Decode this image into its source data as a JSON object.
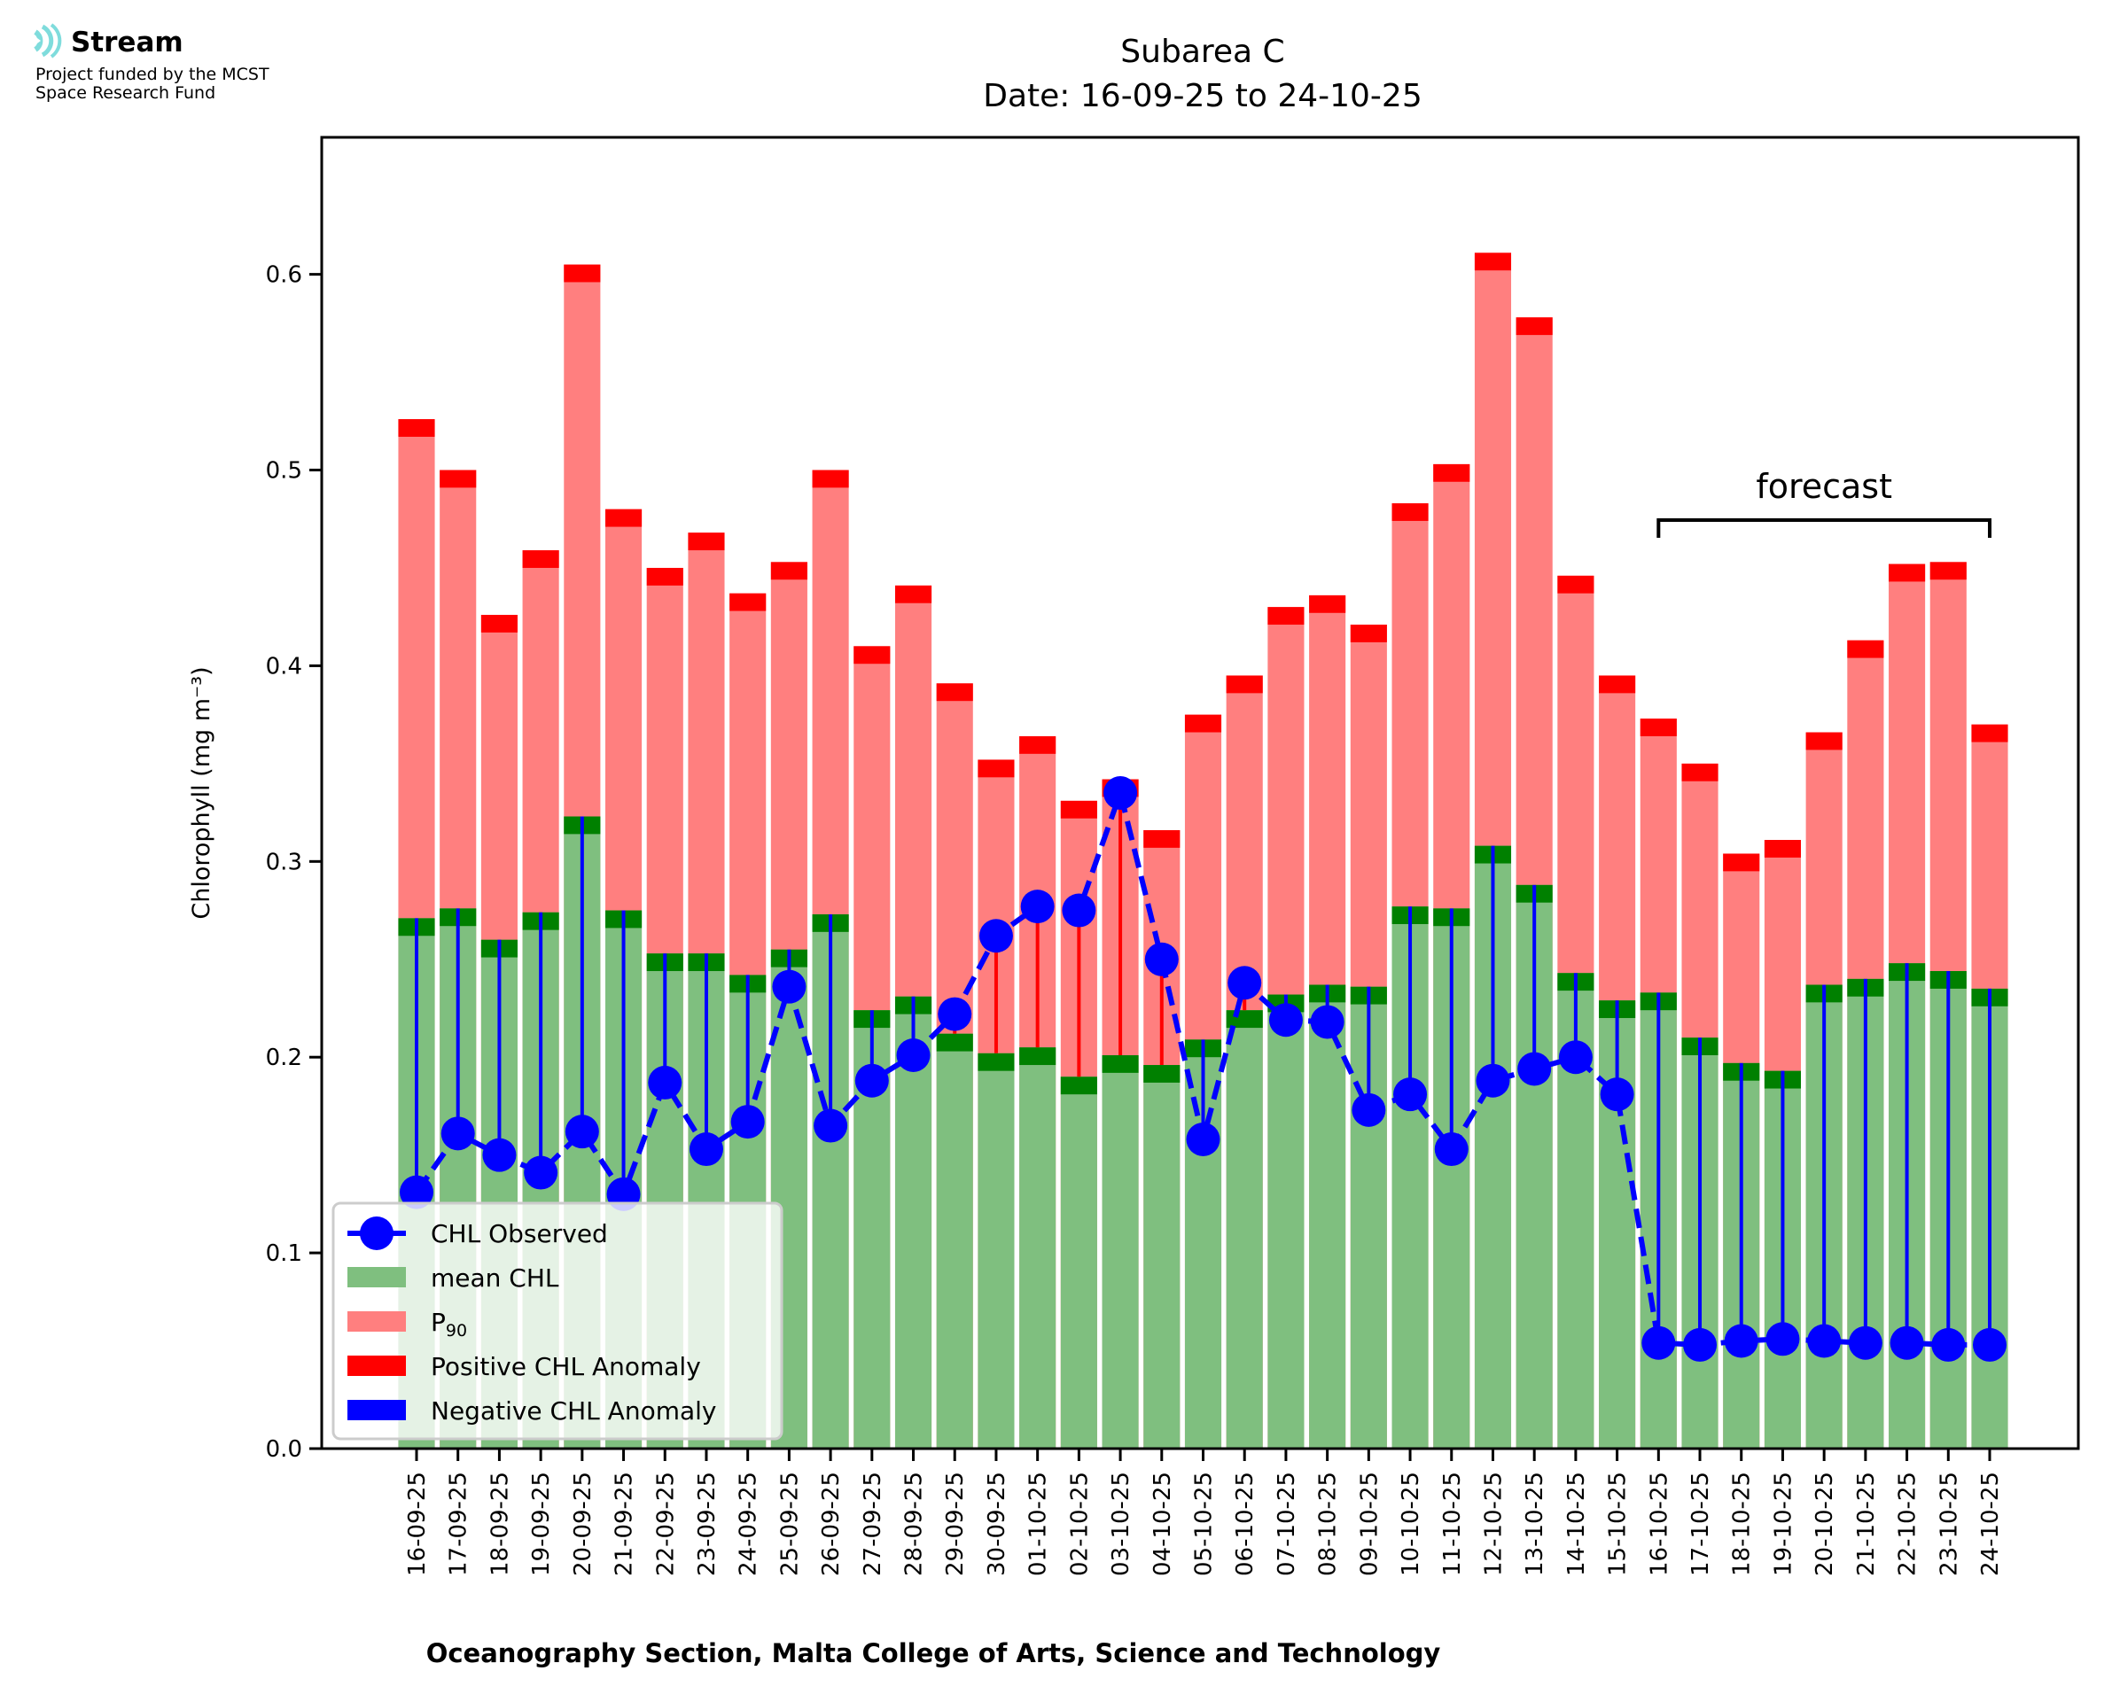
{
  "logo": {
    "brand": "Stream",
    "line1": "Project funded by the MCST",
    "line2": "Space Research Fund",
    "icon": "stream-waves-icon",
    "icon_color": "#7fdcdc"
  },
  "chart_data": {
    "type": "bar",
    "title": "Subarea C",
    "subtitle": "Date: 16-09-25 to 24-10-25",
    "xlabel": "Oceanography Section, Malta College of Arts, Science and Technology",
    "ylabel": "Chlorophyll (mg m⁻³)",
    "ylim": [
      0,
      0.67
    ],
    "yticks": [
      0.0,
      0.1,
      0.2,
      0.3,
      0.4,
      0.5,
      0.6
    ],
    "ytick_labels": [
      "0.0",
      "0.1",
      "0.2",
      "0.3",
      "0.4",
      "0.5",
      "0.6"
    ],
    "grid": false,
    "legend_position": "lower-left",
    "categories": [
      "16-09-25",
      "17-09-25",
      "18-09-25",
      "19-09-25",
      "20-09-25",
      "21-09-25",
      "22-09-25",
      "23-09-25",
      "24-09-25",
      "25-09-25",
      "26-09-25",
      "27-09-25",
      "28-09-25",
      "29-09-25",
      "30-09-25",
      "01-10-25",
      "02-10-25",
      "03-10-25",
      "04-10-25",
      "05-10-25",
      "06-10-25",
      "07-10-25",
      "08-10-25",
      "09-10-25",
      "10-10-25",
      "11-10-25",
      "12-10-25",
      "13-10-25",
      "14-10-25",
      "15-10-25",
      "16-10-25",
      "17-10-25",
      "18-10-25",
      "19-10-25",
      "20-10-25",
      "21-10-25",
      "22-10-25",
      "23-10-25",
      "24-10-25"
    ],
    "series": [
      {
        "name": "P₉₀",
        "key": "p90",
        "color": "#ff7f7f",
        "cap_color": "#ff0000",
        "values": [
          0.526,
          0.5,
          0.426,
          0.459,
          0.605,
          0.48,
          0.45,
          0.468,
          0.437,
          0.453,
          0.5,
          0.41,
          0.441,
          0.391,
          0.352,
          0.364,
          0.331,
          0.342,
          0.316,
          0.375,
          0.395,
          0.43,
          0.436,
          0.421,
          0.483,
          0.503,
          0.611,
          0.578,
          0.446,
          0.395,
          0.373,
          0.35,
          0.304,
          0.311,
          0.366,
          0.413,
          0.452,
          0.453,
          0.37
        ]
      },
      {
        "name": "mean CHL",
        "key": "mean",
        "color": "#7fbf7f",
        "cap_color": "#008000",
        "values": [
          0.271,
          0.276,
          0.26,
          0.274,
          0.323,
          0.275,
          0.253,
          0.253,
          0.242,
          0.255,
          0.273,
          0.224,
          0.231,
          0.212,
          0.202,
          0.205,
          0.19,
          0.201,
          0.196,
          0.209,
          0.224,
          0.232,
          0.237,
          0.236,
          0.277,
          0.276,
          0.308,
          0.288,
          0.243,
          0.229,
          0.233,
          0.21,
          0.197,
          0.193,
          0.237,
          0.24,
          0.248,
          0.244,
          0.235
        ]
      },
      {
        "name": "CHL Observed",
        "key": "observed",
        "color": "#0000ff",
        "type": "line",
        "values": [
          0.131,
          0.161,
          0.15,
          0.141,
          0.162,
          0.13,
          0.187,
          0.153,
          0.167,
          0.236,
          0.165,
          0.188,
          0.201,
          0.222,
          0.262,
          0.277,
          0.275,
          0.335,
          0.25,
          0.158,
          0.238,
          0.219,
          0.218,
          0.173,
          0.181,
          0.153,
          0.188,
          0.194,
          0.2,
          0.181,
          0.054,
          0.053,
          0.055,
          0.056,
          0.055,
          0.054,
          0.054,
          0.053,
          0.053
        ]
      }
    ],
    "legend": [
      {
        "label": "CHL Observed",
        "kind": "line-marker",
        "color": "#0000ff"
      },
      {
        "label": "mean CHL",
        "kind": "patch",
        "color": "#7fbf7f"
      },
      {
        "label": "P",
        "sub": "90",
        "kind": "patch",
        "color": "#ff7f7f"
      },
      {
        "label": "Positive CHL Anomaly",
        "kind": "patch",
        "color": "#ff0000"
      },
      {
        "label": "Negative CHL Anomaly",
        "kind": "patch",
        "color": "#0000ff"
      }
    ],
    "annotations": [
      {
        "text": "forecast",
        "from": "16-10-25",
        "to": "24-10-25",
        "kind": "bracket"
      }
    ],
    "anomaly_colors": {
      "positive": "#ff0000",
      "negative": "#0000ff"
    }
  }
}
